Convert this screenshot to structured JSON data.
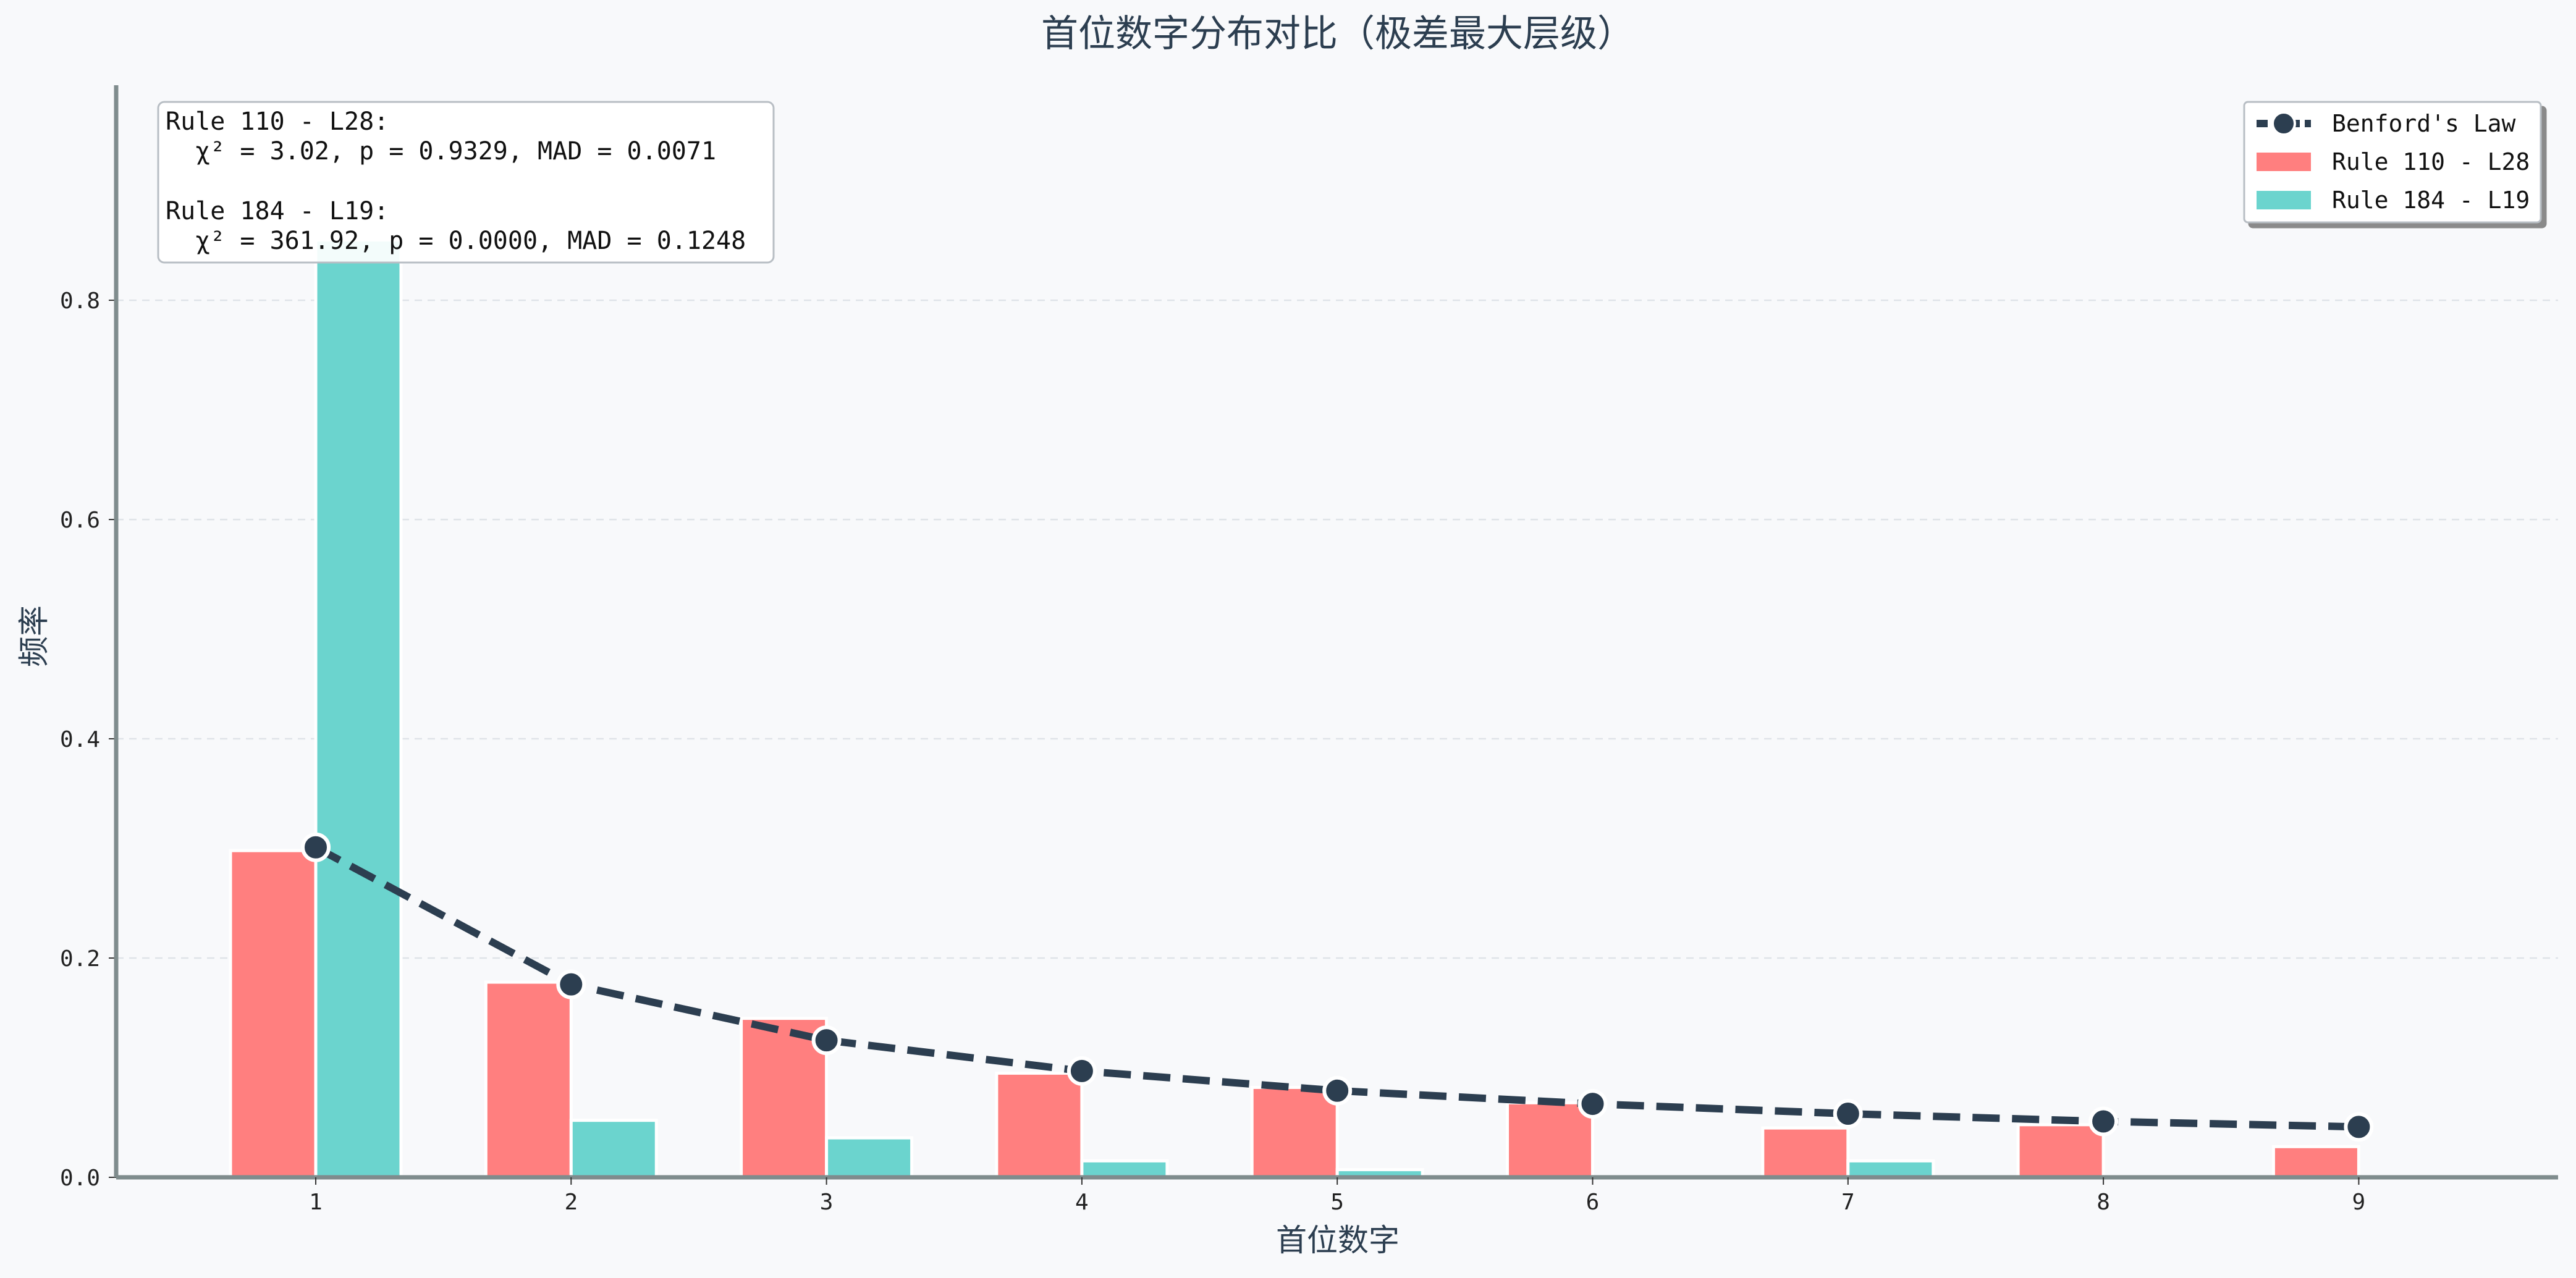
{
  "chart_data": {
    "type": "bar",
    "title": "首位数字分布对比（极差最大层级）",
    "xlabel": "首位数字",
    "ylabel": "频率",
    "categories": [
      "1",
      "2",
      "3",
      "4",
      "5",
      "6",
      "7",
      "8",
      "9"
    ],
    "ylim": [
      0,
      0.995
    ],
    "yticks": [
      "0.0",
      "0.2",
      "0.4",
      "0.6",
      "0.8"
    ],
    "grid": "horizontal dashed",
    "legend_position": "top-right",
    "series": [
      {
        "name": "Rule 110 - L28",
        "kind": "bar",
        "color": "#ff7f7f",
        "values": [
          0.298,
          0.178,
          0.145,
          0.095,
          0.082,
          0.068,
          0.045,
          0.048,
          0.028
        ]
      },
      {
        "name": "Rule 184 - L19",
        "kind": "bar",
        "color": "#6bd4ce",
        "values": [
          0.855,
          0.052,
          0.036,
          0.015,
          0.007,
          0.0,
          0.015,
          0.0,
          0.0
        ]
      },
      {
        "name": "Benford's Law",
        "kind": "line",
        "color": "#2c3e50",
        "values": [
          0.301,
          0.176,
          0.125,
          0.097,
          0.079,
          0.067,
          0.058,
          0.051,
          0.046
        ]
      }
    ],
    "annotation": [
      "Rule 110 - L28:",
      "  χ² = 3.02, p = 0.9329, MAD = 0.0071",
      "",
      "Rule 184 - L19:",
      "  χ² = 361.92, p = 0.0000, MAD = 0.1248"
    ]
  }
}
